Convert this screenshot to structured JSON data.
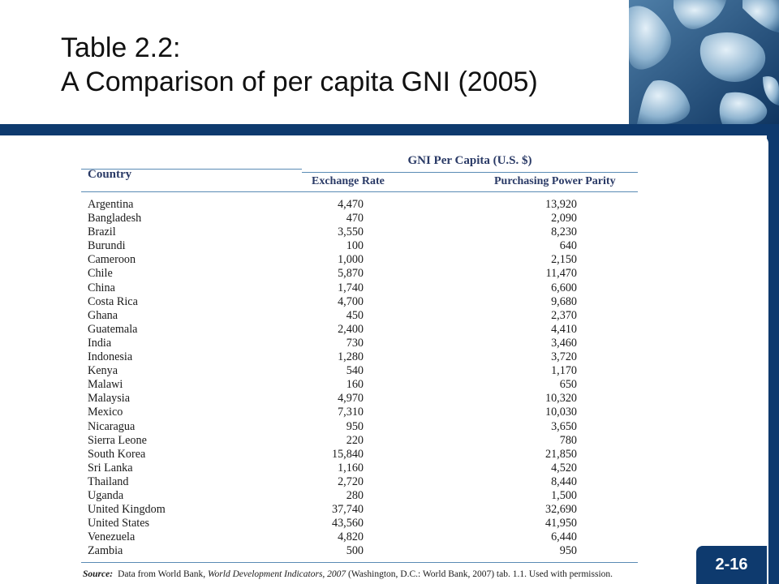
{
  "slide": {
    "title_line1": "Table 2.2:",
    "title_line2": "A Comparison of per capita GNI (2005)",
    "page_number": "2-16",
    "colors": {
      "band": "#0e3a6e",
      "header_text": "#2a3a66",
      "rule": "#5a8bb5"
    },
    "corner_image_icon": "world-map-icon"
  },
  "table": {
    "country_header": "Country",
    "group_header": "GNI Per Capita (U.S. $)",
    "col_exchange": "Exchange Rate",
    "col_ppp": "Purchasing Power Parity",
    "rows": [
      {
        "country": "Argentina",
        "er": "4,470",
        "ppp": "13,920"
      },
      {
        "country": "Bangladesh",
        "er": "470",
        "ppp": "2,090"
      },
      {
        "country": "Brazil",
        "er": "3,550",
        "ppp": "8,230"
      },
      {
        "country": "Burundi",
        "er": "100",
        "ppp": "640"
      },
      {
        "country": "Cameroon",
        "er": "1,000",
        "ppp": "2,150"
      },
      {
        "country": "Chile",
        "er": "5,870",
        "ppp": "11,470"
      },
      {
        "country": "China",
        "er": "1,740",
        "ppp": "6,600"
      },
      {
        "country": "Costa Rica",
        "er": "4,700",
        "ppp": "9,680"
      },
      {
        "country": "Ghana",
        "er": "450",
        "ppp": "2,370"
      },
      {
        "country": "Guatemala",
        "er": "2,400",
        "ppp": "4,410"
      },
      {
        "country": "India",
        "er": "730",
        "ppp": "3,460"
      },
      {
        "country": "Indonesia",
        "er": "1,280",
        "ppp": "3,720"
      },
      {
        "country": "Kenya",
        "er": "540",
        "ppp": "1,170"
      },
      {
        "country": "Malawi",
        "er": "160",
        "ppp": "650"
      },
      {
        "country": "Malaysia",
        "er": "4,970",
        "ppp": "10,320"
      },
      {
        "country": "Mexico",
        "er": "7,310",
        "ppp": "10,030"
      },
      {
        "country": "Nicaragua",
        "er": "950",
        "ppp": "3,650"
      },
      {
        "country": "Sierra Leone",
        "er": "220",
        "ppp": "780"
      },
      {
        "country": "South Korea",
        "er": "15,840",
        "ppp": "21,850"
      },
      {
        "country": "Sri Lanka",
        "er": "1,160",
        "ppp": "4,520"
      },
      {
        "country": "Thailand",
        "er": "2,720",
        "ppp": "8,440"
      },
      {
        "country": "Uganda",
        "er": "280",
        "ppp": "1,500"
      },
      {
        "country": "United Kingdom",
        "er": "37,740",
        "ppp": "32,690"
      },
      {
        "country": "United States",
        "er": "43,560",
        "ppp": "41,950"
      },
      {
        "country": "Venezuela",
        "er": "4,820",
        "ppp": "6,440"
      },
      {
        "country": "Zambia",
        "er": "500",
        "ppp": "950"
      }
    ]
  },
  "source": {
    "label": "Source:",
    "text_before": "Data from World Bank, ",
    "book": "World Development Indicators, 2007",
    "text_after": " (Washington, D.C.: World Bank, 2007) tab. 1.1. Used with permission."
  }
}
